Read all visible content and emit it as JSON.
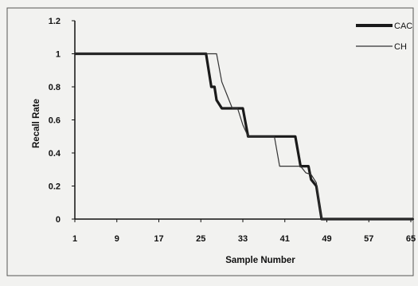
{
  "chart_data": {
    "type": "line",
    "title": "",
    "xlabel": "Sample Number",
    "ylabel": "Recall Rate",
    "xlim": [
      1,
      65
    ],
    "ylim": [
      0,
      1.2
    ],
    "x_ticks": [
      1,
      9,
      17,
      25,
      33,
      41,
      49,
      57,
      65
    ],
    "x_tick_labels": [
      "1",
      "9",
      "17",
      "25",
      "33",
      "41",
      "49",
      "57",
      "65"
    ],
    "y_ticks": [
      0,
      0.2,
      0.4,
      0.6,
      0.8,
      1,
      1.2
    ],
    "y_tick_labels": [
      "0",
      "0.2",
      "0.4",
      "0.6",
      "0.8",
      "1",
      "1.2"
    ],
    "grid": false,
    "legend_position": "top-right",
    "series": [
      {
        "name": "CAC",
        "color": "#1a1a1a",
        "weight": "thick",
        "x": [
          1,
          26,
          27,
          27.6,
          28,
          29,
          30,
          32,
          33,
          34,
          35,
          43,
          44,
          45.5,
          46,
          47,
          48,
          66
        ],
        "y": [
          1,
          1,
          0.8,
          0.8,
          0.72,
          0.67,
          0.67,
          0.67,
          0.67,
          0.5,
          0.5,
          0.5,
          0.32,
          0.32,
          0.24,
          0.2,
          0,
          0
        ]
      },
      {
        "name": "CH",
        "color": "#333333",
        "weight": "thin",
        "x": [
          1,
          28,
          29,
          30,
          31,
          32,
          33,
          34,
          39,
          40,
          41,
          44,
          45,
          46,
          47,
          48,
          66
        ],
        "y": [
          1,
          1,
          0.83,
          0.75,
          0.67,
          0.67,
          0.57,
          0.5,
          0.5,
          0.32,
          0.32,
          0.32,
          0.28,
          0.27,
          0.22,
          0,
          0
        ]
      }
    ]
  }
}
